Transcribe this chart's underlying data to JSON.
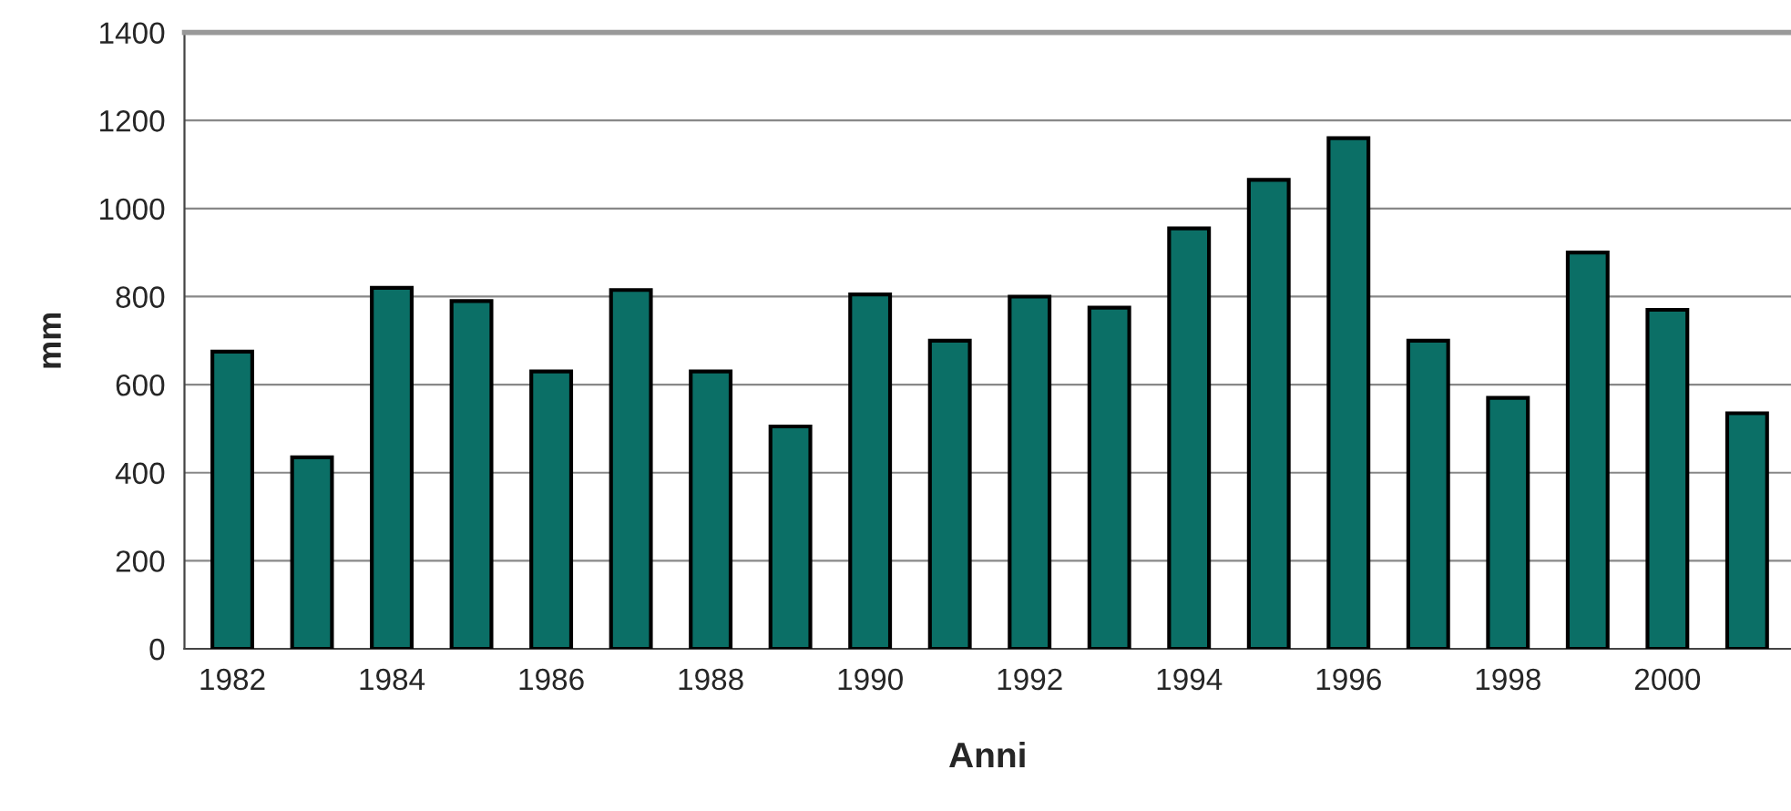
{
  "chart_data": {
    "type": "bar",
    "xlabel": "Anni",
    "ylabel": "mm",
    "categories": [
      "1982",
      null,
      "1984",
      null,
      "1986",
      null,
      "1988",
      null,
      "1990",
      null,
      "1992",
      null,
      "1994",
      null,
      "1996",
      null,
      "1998",
      null,
      "2000",
      null
    ],
    "values": [
      675,
      435,
      820,
      790,
      630,
      815,
      630,
      505,
      805,
      700,
      800,
      775,
      955,
      1065,
      1160,
      700,
      570,
      900,
      770,
      535
    ],
    "color": "#0b6f66",
    "ylim": [
      0,
      1400
    ],
    "yticks": [
      0,
      200,
      400,
      600,
      800,
      1000,
      1200,
      1400
    ],
    "grid": "y"
  }
}
